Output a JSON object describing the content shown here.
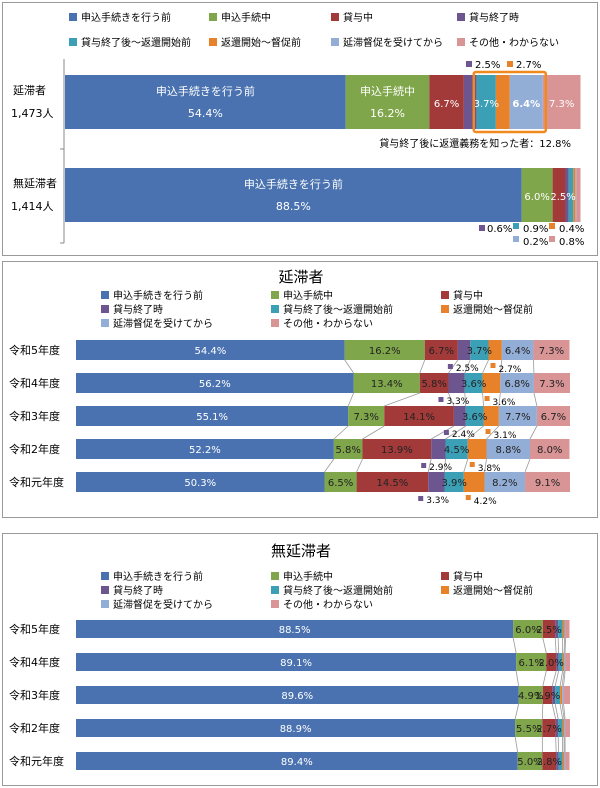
{
  "colors": {
    "application_before": "#4a72b0",
    "application_during": "#7fa64a",
    "loan_ongoing": "#a33a3a",
    "loan_ended": "#6d5590",
    "post_loan_pre_repayment": "#3b9fb5",
    "repayment_to_reminder": "#e8822a",
    "after_reminder": "#93aed6",
    "other_unknown": "#d99496",
    "highlight_box": "#f08a1e",
    "connector": "#9a9a9a"
  },
  "legend_labels": [
    "申込手続きを行う前",
    "申込手続中",
    "貸与中",
    "貸与終了時",
    "貸与終了後～返還開始前",
    "返還開始～督促前",
    "延滞督促を受けてから",
    "その他・わからない"
  ],
  "chart_data": [
    {
      "type": "bar",
      "orientation": "horizontal",
      "stacked": true,
      "title": "",
      "categories": [
        "延滞者 1,473人",
        "無延滞者 1,414人"
      ],
      "category_lines": [
        [
          "延滞者",
          "1,473人"
        ],
        [
          "無延滞者",
          "1,414人"
        ]
      ],
      "series": [
        {
          "name": "申込手続きを行う前",
          "values": [
            54.4,
            88.5
          ]
        },
        {
          "name": "申込手続中",
          "values": [
            16.2,
            6.0
          ]
        },
        {
          "name": "貸与中",
          "values": [
            6.7,
            2.5
          ]
        },
        {
          "name": "貸与終了時",
          "values": [
            2.5,
            0.6
          ]
        },
        {
          "name": "貸与終了後～返還開始前",
          "values": [
            3.7,
            0.9
          ]
        },
        {
          "name": "返還開始～督促前",
          "values": [
            2.7,
            0.4
          ]
        },
        {
          "name": "延滞督促を受けてから",
          "values": [
            6.4,
            0.2
          ]
        },
        {
          "name": "その他・わからない",
          "values": [
            7.3,
            0.8
          ]
        }
      ],
      "unit": "%",
      "xlim": [
        0,
        100
      ],
      "legend_position": "top",
      "annotation": "貸与終了後に返還義務を知った者：12.8%"
    },
    {
      "type": "bar",
      "orientation": "horizontal",
      "stacked": true,
      "title": "延滞者",
      "categories": [
        "令和5年度",
        "令和4年度",
        "令和3年度",
        "令和2年度",
        "令和元年度"
      ],
      "series": [
        {
          "name": "申込手続きを行う前",
          "values": [
            54.4,
            56.2,
            55.1,
            52.2,
            50.3
          ]
        },
        {
          "name": "申込手続中",
          "values": [
            16.2,
            13.4,
            7.3,
            5.8,
            6.5
          ]
        },
        {
          "name": "貸与中",
          "values": [
            6.7,
            5.8,
            14.1,
            13.9,
            14.5
          ]
        },
        {
          "name": "貸与終了時",
          "values": [
            2.5,
            3.3,
            2.4,
            2.9,
            3.3
          ]
        },
        {
          "name": "貸与終了後～返還開始前",
          "values": [
            3.7,
            3.6,
            3.6,
            4.5,
            3.9
          ]
        },
        {
          "name": "返還開始～督促前",
          "values": [
            2.7,
            3.6,
            3.1,
            3.8,
            4.2
          ]
        },
        {
          "name": "延滞督促を受けてから",
          "values": [
            6.4,
            6.8,
            7.7,
            8.8,
            8.2
          ]
        },
        {
          "name": "その他・わからない",
          "values": [
            7.3,
            7.3,
            6.7,
            8.0,
            9.1
          ]
        }
      ],
      "unit": "%",
      "xlim": [
        0,
        100
      ],
      "legend_position": "top"
    },
    {
      "type": "bar",
      "orientation": "horizontal",
      "stacked": true,
      "title": "無延滞者",
      "categories": [
        "令和5年度",
        "令和4年度",
        "令和3年度",
        "令和2年度",
        "令和元年度"
      ],
      "series": [
        {
          "name": "申込手続きを行う前",
          "values": [
            88.5,
            89.1,
            89.6,
            88.9,
            89.4
          ]
        },
        {
          "name": "申込手続中",
          "values": [
            6.0,
            6.1,
            4.9,
            5.5,
            5.0
          ]
        },
        {
          "name": "貸与中",
          "values": [
            2.5,
            2.0,
            1.9,
            2.7,
            2.8
          ]
        },
        {
          "name": "貸与終了時",
          "values": [
            0.6,
            0.5,
            0.6,
            0.5,
            0.5
          ]
        },
        {
          "name": "貸与終了後～返還開始前",
          "values": [
            0.9,
            0.8,
            1.0,
            0.9,
            0.8
          ]
        },
        {
          "name": "返還開始～督促前",
          "values": [
            0.4,
            0.3,
            0.4,
            0.3,
            0.3
          ]
        },
        {
          "name": "延滞督促を受けてから",
          "values": [
            0.2,
            0.2,
            0.3,
            0.2,
            0.2
          ]
        },
        {
          "name": "その他・わからない",
          "values": [
            0.8,
            1.0,
            1.3,
            1.0,
            0.9
          ]
        }
      ],
      "unit": "%",
      "xlim": [
        0,
        100
      ],
      "legend_position": "top"
    }
  ]
}
